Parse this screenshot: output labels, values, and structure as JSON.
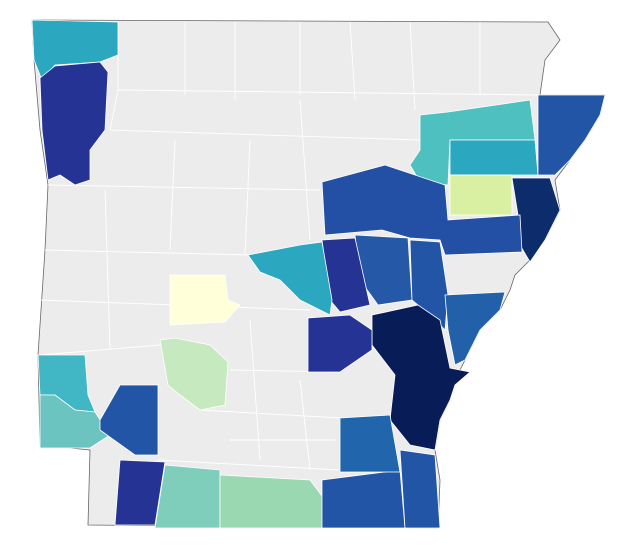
{
  "map": {
    "base_color": "#ececec",
    "regions": [
      {
        "color": "#2ba7c0"
      },
      {
        "color": "#253494"
      },
      {
        "color": "#4fc0c0"
      },
      {
        "color": "#2ba7c0"
      },
      {
        "color": "#2255a5"
      },
      {
        "color": "#d9f0a3"
      },
      {
        "color": "#0c2c6b"
      },
      {
        "color": "#2350a5"
      },
      {
        "color": "#2559a8"
      },
      {
        "color": "#253494"
      },
      {
        "color": "#2ba7c0"
      },
      {
        "color": "#2255a5"
      },
      {
        "color": "#2260aa"
      },
      {
        "color": "#081d58"
      },
      {
        "color": "#253494"
      },
      {
        "color": "#ffffd9"
      },
      {
        "color": "#c7e9c0"
      },
      {
        "color": "#41b6c4"
      },
      {
        "color": "#6bc4c0"
      },
      {
        "color": "#2255a5"
      },
      {
        "color": "#253494"
      },
      {
        "color": "#7fcdbb"
      },
      {
        "color": "#99d8b0"
      },
      {
        "color": "#2255a5"
      },
      {
        "color": "#2166ac"
      },
      {
        "color": "#2255a5"
      }
    ]
  }
}
